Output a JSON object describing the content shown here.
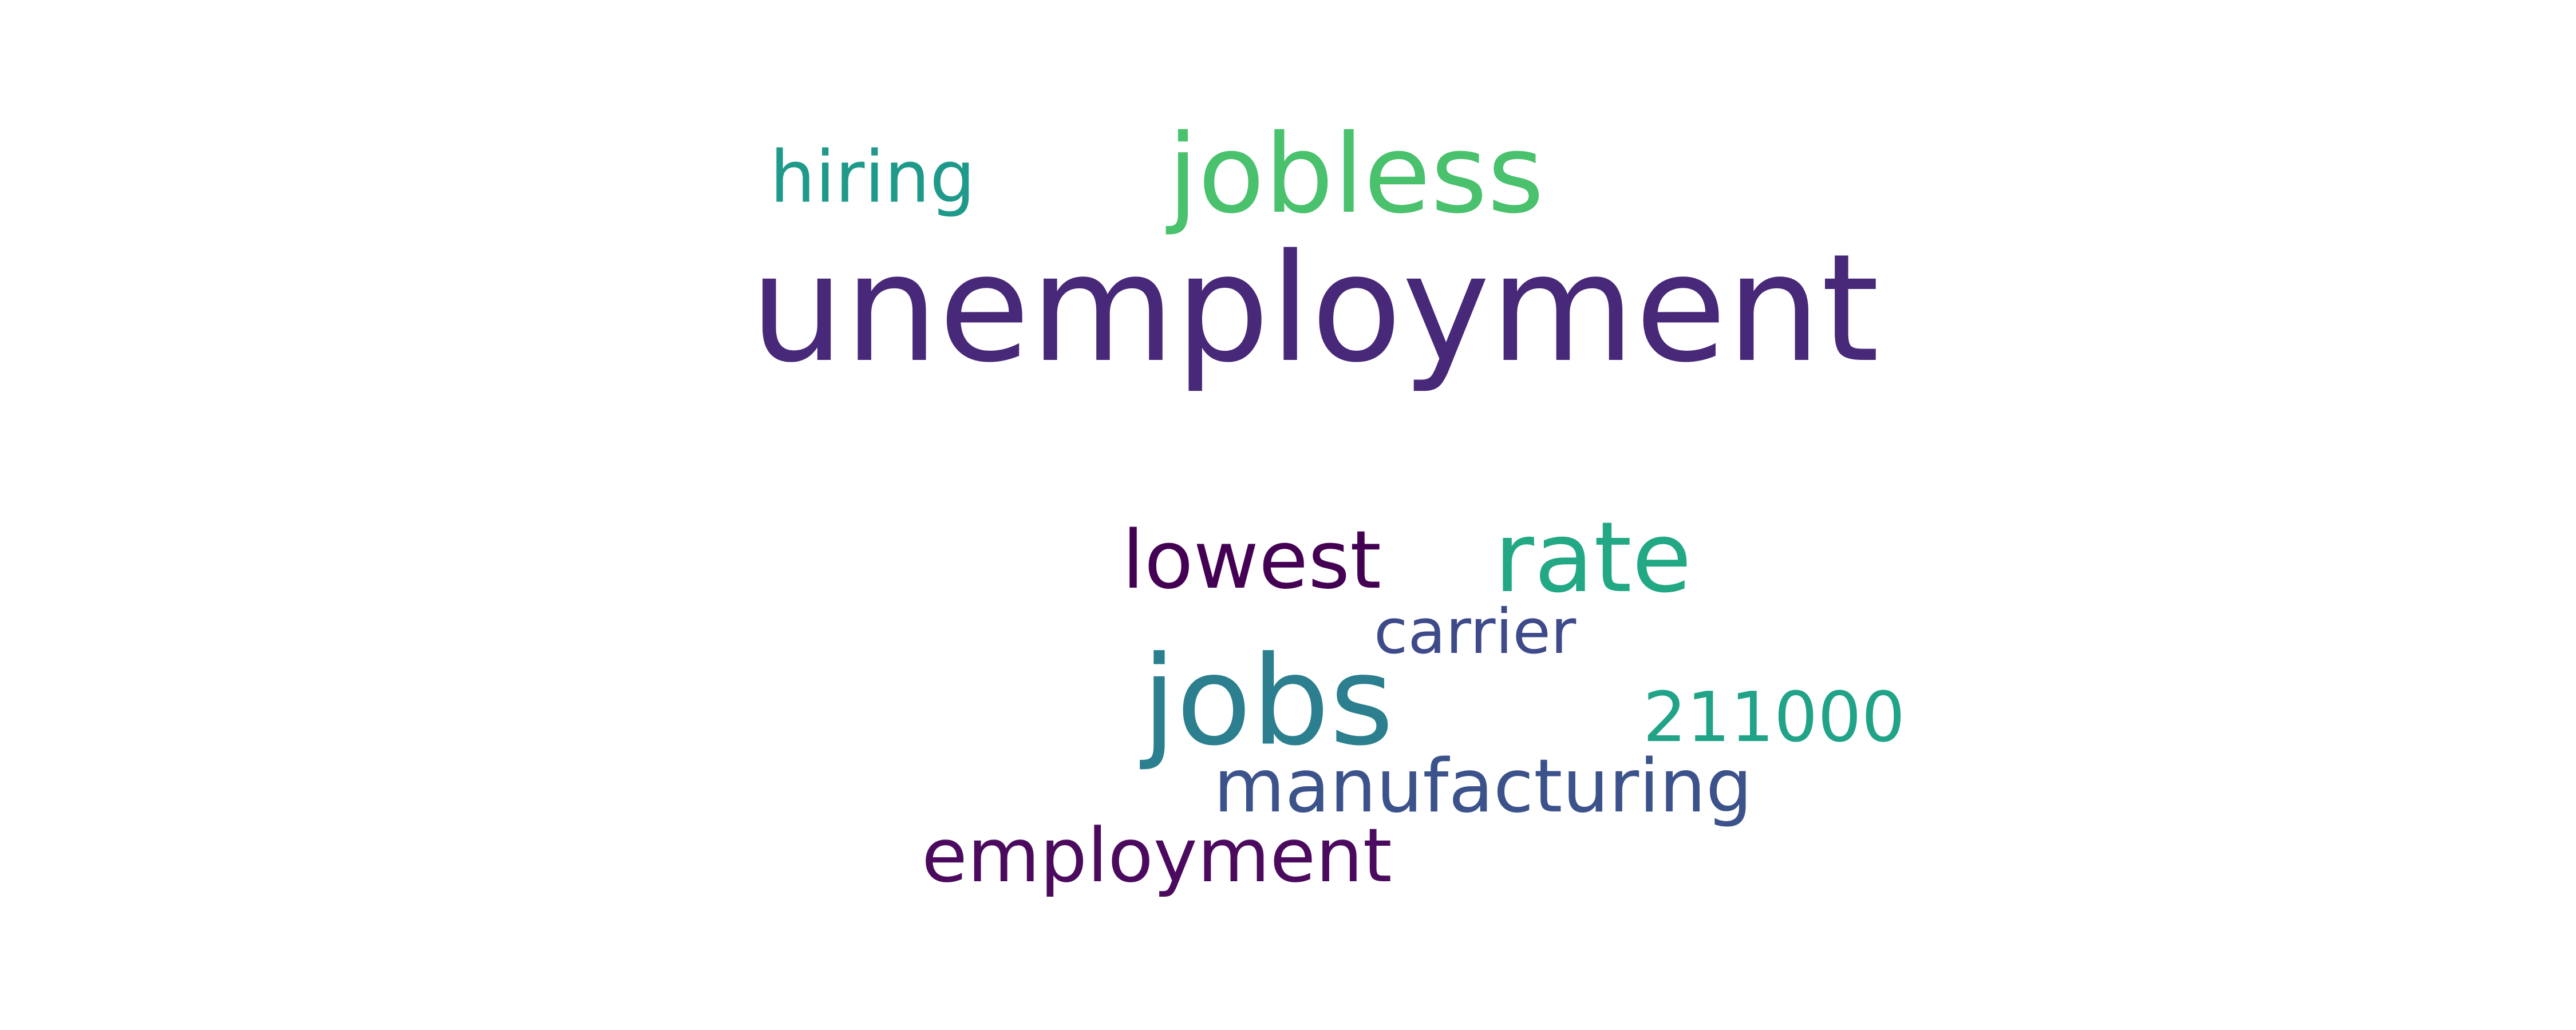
{
  "words": [
    {
      "id": "unemployment",
      "text": "unemployment",
      "color": "#482878"
    },
    {
      "id": "jobless",
      "text": "jobless",
      "color": "#4ac16d"
    },
    {
      "id": "hiring",
      "text": "hiring",
      "color": "#1f9a8a"
    },
    {
      "id": "lowest",
      "text": "lowest",
      "color": "#440154"
    },
    {
      "id": "rate",
      "text": "rate",
      "color": "#22a884"
    },
    {
      "id": "carrier",
      "text": "carrier",
      "color": "#3e4a89"
    },
    {
      "id": "jobs",
      "text": "jobs",
      "color": "#2c7f8e"
    },
    {
      "id": "211000",
      "text": "211000",
      "color": "#20a386"
    },
    {
      "id": "manufacturing",
      "text": "manufacturing",
      "color": "#3b528b"
    },
    {
      "id": "employment",
      "text": "employment",
      "color": "#4b0a5e"
    }
  ]
}
